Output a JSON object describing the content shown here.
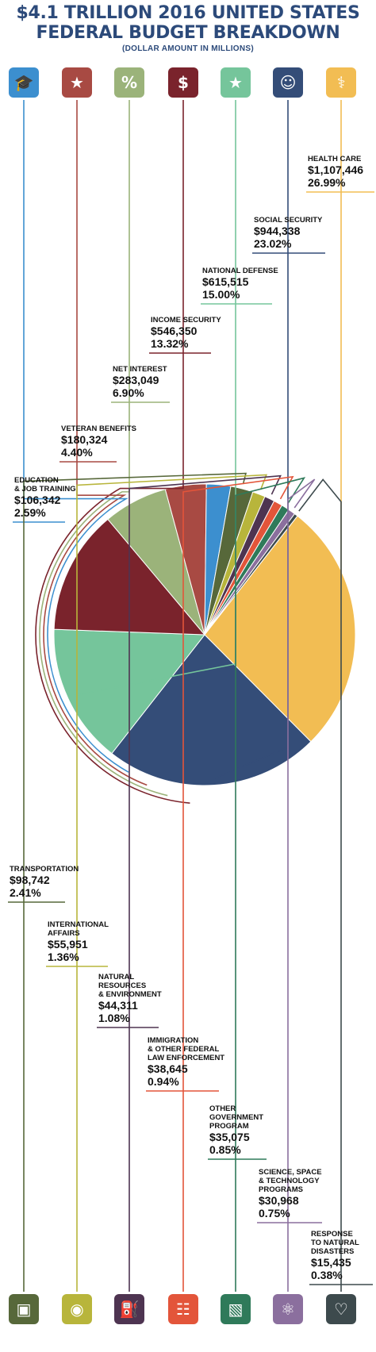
{
  "title_line1": "$4.1 TRILLION 2016 UNITED STATES",
  "title_line2": "FEDERAL BUDGET BREAKDOWN",
  "subtitle": "(DOLLAR AMOUNT IN MILLIONS)",
  "chart_data": {
    "type": "pie",
    "title": "$4.1 TRILLION 2016 UNITED STATES FEDERAL BUDGET BREAKDOWN",
    "subtitle": "(DOLLAR AMOUNT IN MILLIONS)",
    "slices": [
      {
        "label": "HEALTH CARE",
        "amount": "$1,107,446",
        "value": 1107446,
        "percent": "26.99%",
        "color": "#f2bd53",
        "icon": "caduceus-stethoscope-icon"
      },
      {
        "label": "SOCIAL SECURITY",
        "amount": "$944,338",
        "value": 944338,
        "percent": "23.02%",
        "color": "#344d78",
        "icon": "family-hands-icon"
      },
      {
        "label": "NATIONAL DEFENSE",
        "amount": "$615,515",
        "value": 615515,
        "percent": "15.00%",
        "color": "#75c59b",
        "icon": "star-badge-icon"
      },
      {
        "label": "INCOME SECURITY",
        "amount": "$546,350",
        "value": 546350,
        "percent": "13.32%",
        "color": "#7a232c",
        "icon": "dollar-document-icon"
      },
      {
        "label": "NET INTEREST",
        "amount": "$283,049",
        "value": 283049,
        "percent": "6.90%",
        "color": "#9bb37a",
        "icon": "percent-icon"
      },
      {
        "label": "VETERAN BENEFITS",
        "amount": "$180,324",
        "value": 180324,
        "percent": "4.40%",
        "color": "#a84a43",
        "icon": "medal-icon"
      },
      {
        "label": "EDUCATION\n& JOB TRAINING",
        "amount": "$106,342",
        "value": 106342,
        "percent": "2.59%",
        "color": "#3c8fcf",
        "icon": "graduation-cap-icon"
      },
      {
        "label": "TRANSPORTATION",
        "amount": "$98,742",
        "value": 98742,
        "percent": "2.41%",
        "color": "#57683a",
        "icon": "bus-icon"
      },
      {
        "label": "INTERNATIONAL\nAFFAIRS",
        "amount": "$55,951",
        "value": 55951,
        "percent": "1.36%",
        "color": "#b8b53b",
        "icon": "globe-pin-icon"
      },
      {
        "label": "NATURAL\nRESOURCES\n& ENVIRONMENT",
        "amount": "$44,311",
        "value": 44311,
        "percent": "1.08%",
        "color": "#4e3451",
        "icon": "oil-pump-icon"
      },
      {
        "label": "IMMIGRATION\n& OTHER FEDERAL\nLAW ENFORCEMENT",
        "amount": "$38,645",
        "value": 38645,
        "percent": "0.94%",
        "color": "#e3553a",
        "icon": "officer-icon"
      },
      {
        "label": "OTHER\nGOVERNMENT\nPROGRAM",
        "amount": "$35,075",
        "value": 35075,
        "percent": "0.85%",
        "color": "#2f7a5a",
        "icon": "box-icon"
      },
      {
        "label": "SCIENCE, SPACE\n& TECHNOLOGY\nPROGRAMS",
        "amount": "$30,968",
        "value": 30968,
        "percent": "0.75%",
        "color": "#8b6f9e",
        "icon": "atom-icon"
      },
      {
        "label": "RESPONSE\nTO NATURAL\nDISASTERS",
        "amount": "$15,435",
        "value": 15435,
        "percent": "0.38%",
        "color": "#3d4a4d",
        "icon": "heartbeat-hands-icon"
      }
    ]
  }
}
